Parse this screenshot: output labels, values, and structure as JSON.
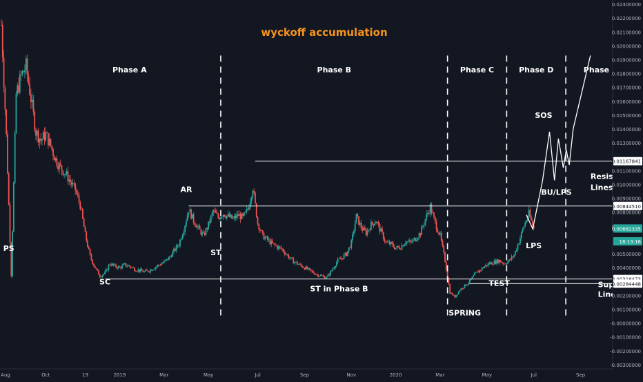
{
  "chart_data": {
    "type": "candlestick",
    "title": "wyckoff accumulation",
    "y_axis": {
      "ylim": [
        -0.0033,
        0.0233
      ],
      "ticks": [
        "0.02300000",
        "0.02200000",
        "0.02100000",
        "0.02000000",
        "0.01900000",
        "0.01800000",
        "0.01700000",
        "0.01600000",
        "0.01500000",
        "0.01400000",
        "0.01300000",
        "0.01100000",
        "0.01000000",
        "0.00900000",
        "0.00800000",
        "0.00700000",
        "0.00500000",
        "0.00400000",
        "0.00200000",
        "0.00100000",
        "-0.00000000",
        "-0.00100000",
        "-0.00200000",
        "-0.00300000"
      ],
      "price_labels": [
        {
          "text": "0.01167841",
          "value": 0.01167841,
          "style": "box"
        },
        {
          "text": "0.00844510",
          "value": 0.0084451,
          "style": "box"
        },
        {
          "text": "0.00682335",
          "value": 0.00682335,
          "style": "current"
        },
        {
          "text": "18:13:16",
          "value": 0.0059,
          "style": "current"
        },
        {
          "text": "0.00318473",
          "value": 0.00318473,
          "style": "box"
        },
        {
          "text": "0.00284448",
          "value": 0.00284448,
          "style": "box"
        }
      ]
    },
    "x_axis": {
      "ticks": [
        {
          "label": "Aug",
          "t": 0
        },
        {
          "label": "Oct",
          "t": 9
        },
        {
          "label": "19",
          "t": 17
        },
        {
          "label": "2019",
          "t": 24
        },
        {
          "label": "Mar",
          "t": 33
        },
        {
          "label": "May",
          "t": 42
        },
        {
          "label": "Jul",
          "t": 52
        },
        {
          "label": "Sep",
          "t": 61.5
        },
        {
          "label": "Nov",
          "t": 71
        },
        {
          "label": "2020",
          "t": 80
        },
        {
          "label": "Mar",
          "t": 89
        },
        {
          "label": "May",
          "t": 98.5
        },
        {
          "label": "Jul",
          "t": 108
        },
        {
          "label": "Sep",
          "t": 117.5
        }
      ]
    },
    "price_anchors": [
      [
        0,
        0.0215
      ],
      [
        1,
        0.0135
      ],
      [
        2,
        0.0035
      ],
      [
        3,
        0.0165
      ],
      [
        4,
        0.0178
      ],
      [
        5,
        0.0185
      ],
      [
        6,
        0.0162
      ],
      [
        7,
        0.0138
      ],
      [
        8,
        0.0132
      ],
      [
        9,
        0.0136
      ],
      [
        10,
        0.0128
      ],
      [
        11,
        0.0118
      ],
      [
        12,
        0.0112
      ],
      [
        13,
        0.0108
      ],
      [
        14,
        0.0102
      ],
      [
        15,
        0.0096
      ],
      [
        16,
        0.0085
      ],
      [
        17,
        0.0064
      ],
      [
        18,
        0.0048
      ],
      [
        19,
        0.004
      ],
      [
        20,
        0.0034
      ],
      [
        21,
        0.0036
      ],
      [
        22,
        0.0043
      ],
      [
        23,
        0.0041
      ],
      [
        24,
        0.004
      ],
      [
        25,
        0.0042
      ],
      [
        26,
        0.0041
      ],
      [
        27,
        0.0039
      ],
      [
        28,
        0.0038
      ],
      [
        29,
        0.0037
      ],
      [
        30,
        0.0038
      ],
      [
        31,
        0.004
      ],
      [
        32,
        0.0042
      ],
      [
        33,
        0.0044
      ],
      [
        34,
        0.0047
      ],
      [
        35,
        0.0052
      ],
      [
        36,
        0.0057
      ],
      [
        37,
        0.0068
      ],
      [
        38,
        0.0082
      ],
      [
        39,
        0.0074
      ],
      [
        40,
        0.0068
      ],
      [
        41,
        0.0063
      ],
      [
        42,
        0.0071
      ],
      [
        43,
        0.0081
      ],
      [
        44,
        0.0076
      ],
      [
        45,
        0.0079
      ],
      [
        46,
        0.0077
      ],
      [
        47,
        0.0075
      ],
      [
        48,
        0.0078
      ],
      [
        49,
        0.0076
      ],
      [
        50,
        0.0082
      ],
      [
        51,
        0.0098
      ],
      [
        52,
        0.0072
      ],
      [
        53,
        0.0063
      ],
      [
        54,
        0.006
      ],
      [
        55,
        0.0057
      ],
      [
        56,
        0.0055
      ],
      [
        57,
        0.0053
      ],
      [
        58,
        0.0049
      ],
      [
        59,
        0.0045
      ],
      [
        60,
        0.0043
      ],
      [
        61,
        0.0041
      ],
      [
        62,
        0.0039
      ],
      [
        63,
        0.0037
      ],
      [
        64,
        0.0035
      ],
      [
        65,
        0.0034
      ],
      [
        66,
        0.0033
      ],
      [
        67,
        0.0038
      ],
      [
        68,
        0.0044
      ],
      [
        69,
        0.0047
      ],
      [
        70,
        0.005
      ],
      [
        71,
        0.0058
      ],
      [
        72,
        0.0077
      ],
      [
        73,
        0.0069
      ],
      [
        74,
        0.0065
      ],
      [
        75,
        0.0071
      ],
      [
        76,
        0.0074
      ],
      [
        77,
        0.0066
      ],
      [
        78,
        0.0058
      ],
      [
        79,
        0.0057
      ],
      [
        80,
        0.0054
      ],
      [
        81,
        0.0055
      ],
      [
        82,
        0.0059
      ],
      [
        83,
        0.0058
      ],
      [
        84,
        0.0061
      ],
      [
        85,
        0.0065
      ],
      [
        86,
        0.0075
      ],
      [
        87,
        0.0084
      ],
      [
        88,
        0.0072
      ],
      [
        89,
        0.0063
      ],
      [
        90,
        0.0045
      ],
      [
        91,
        0.0022
      ],
      [
        92,
        0.0019
      ],
      [
        93,
        0.0024
      ],
      [
        94,
        0.0027
      ],
      [
        95,
        0.003
      ],
      [
        96,
        0.0035
      ],
      [
        97,
        0.0038
      ],
      [
        98,
        0.0041
      ],
      [
        99,
        0.0043
      ],
      [
        100,
        0.0044
      ],
      [
        101,
        0.0045
      ],
      [
        102,
        0.0043
      ],
      [
        103,
        0.0045
      ],
      [
        104,
        0.0049
      ],
      [
        105,
        0.0059
      ],
      [
        106,
        0.007
      ],
      [
        107,
        0.0079
      ],
      [
        108,
        0.0068
      ]
    ],
    "levels": [
      {
        "name": "resistance-upper",
        "value": 0.01167841,
        "from_t": 51.5
      },
      {
        "name": "resistance-lower",
        "value": 0.0084451,
        "from_t": 38
      },
      {
        "name": "support-upper",
        "value": 0.00318473,
        "from_t": 21
      },
      {
        "name": "support-lower",
        "value": 0.00284448,
        "from_t": 95
      }
    ],
    "phase_dividers_t": [
      44.5,
      90.5,
      102.5,
      114.5
    ],
    "phases": [
      {
        "label": "Phase A",
        "t": 26
      },
      {
        "label": "Phase B",
        "t": 67.5
      },
      {
        "label": "Phase C",
        "t": 96.5
      },
      {
        "label": "Phase D",
        "t": 108.5
      },
      {
        "label": "Phase E",
        "t": 121.5
      }
    ],
    "projection_path": [
      [
        106.5,
        0.0078
      ],
      [
        107.8,
        0.0068
      ],
      [
        109.8,
        0.0103
      ],
      [
        111.2,
        0.0138
      ],
      [
        112.2,
        0.0103
      ],
      [
        113.0,
        0.0133
      ],
      [
        114.0,
        0.0112
      ],
      [
        114.6,
        0.0125
      ],
      [
        115.2,
        0.0114
      ],
      [
        116.0,
        0.014
      ],
      [
        119.5,
        0.0193
      ]
    ],
    "annotations": [
      {
        "text": "PS",
        "t": 1.5,
        "y": 0.0052,
        "anchor": "middle"
      },
      {
        "text": "AR",
        "t": 37.5,
        "y": 0.00945,
        "anchor": "middle"
      },
      {
        "text": "ST",
        "t": 43.5,
        "y": 0.0049,
        "anchor": "middle"
      },
      {
        "text": "SC",
        "t": 21,
        "y": 0.0028,
        "anchor": "middle"
      },
      {
        "text": "ST in Phase B",
        "t": 68.5,
        "y": 0.0023,
        "anchor": "middle"
      },
      {
        "text": "SPRING",
        "t": 94,
        "y": 0.00055,
        "anchor": "middle"
      },
      {
        "text": "TEST",
        "t": 101,
        "y": 0.0027,
        "anchor": "middle"
      },
      {
        "text": "LPS",
        "t": 108,
        "y": 0.0054,
        "anchor": "middle"
      },
      {
        "text": "SOS",
        "t": 110,
        "y": 0.0148,
        "anchor": "middle"
      },
      {
        "text": "BU/LPS",
        "t": 109.5,
        "y": 0.00925,
        "anchor": "start"
      },
      {
        "text": "Resistance",
        "t": 119.5,
        "y": 0.0104,
        "anchor": "start"
      },
      {
        "text": "Lines",
        "t": 119.5,
        "y": 0.0096,
        "anchor": "start"
      },
      {
        "text": "Support",
        "t": 121,
        "y": 0.0026,
        "anchor": "start"
      },
      {
        "text": "Lines",
        "t": 121,
        "y": 0.0019,
        "anchor": "start"
      }
    ],
    "colors": {
      "background": "#131722",
      "up": "#26a69a",
      "down": "#ef5350",
      "annotation_text": "#ffffff",
      "title": "#f7941d",
      "axis_text": "#b2b5be",
      "current_price_bg": "#26a69a",
      "lines": "#ffffff"
    }
  }
}
